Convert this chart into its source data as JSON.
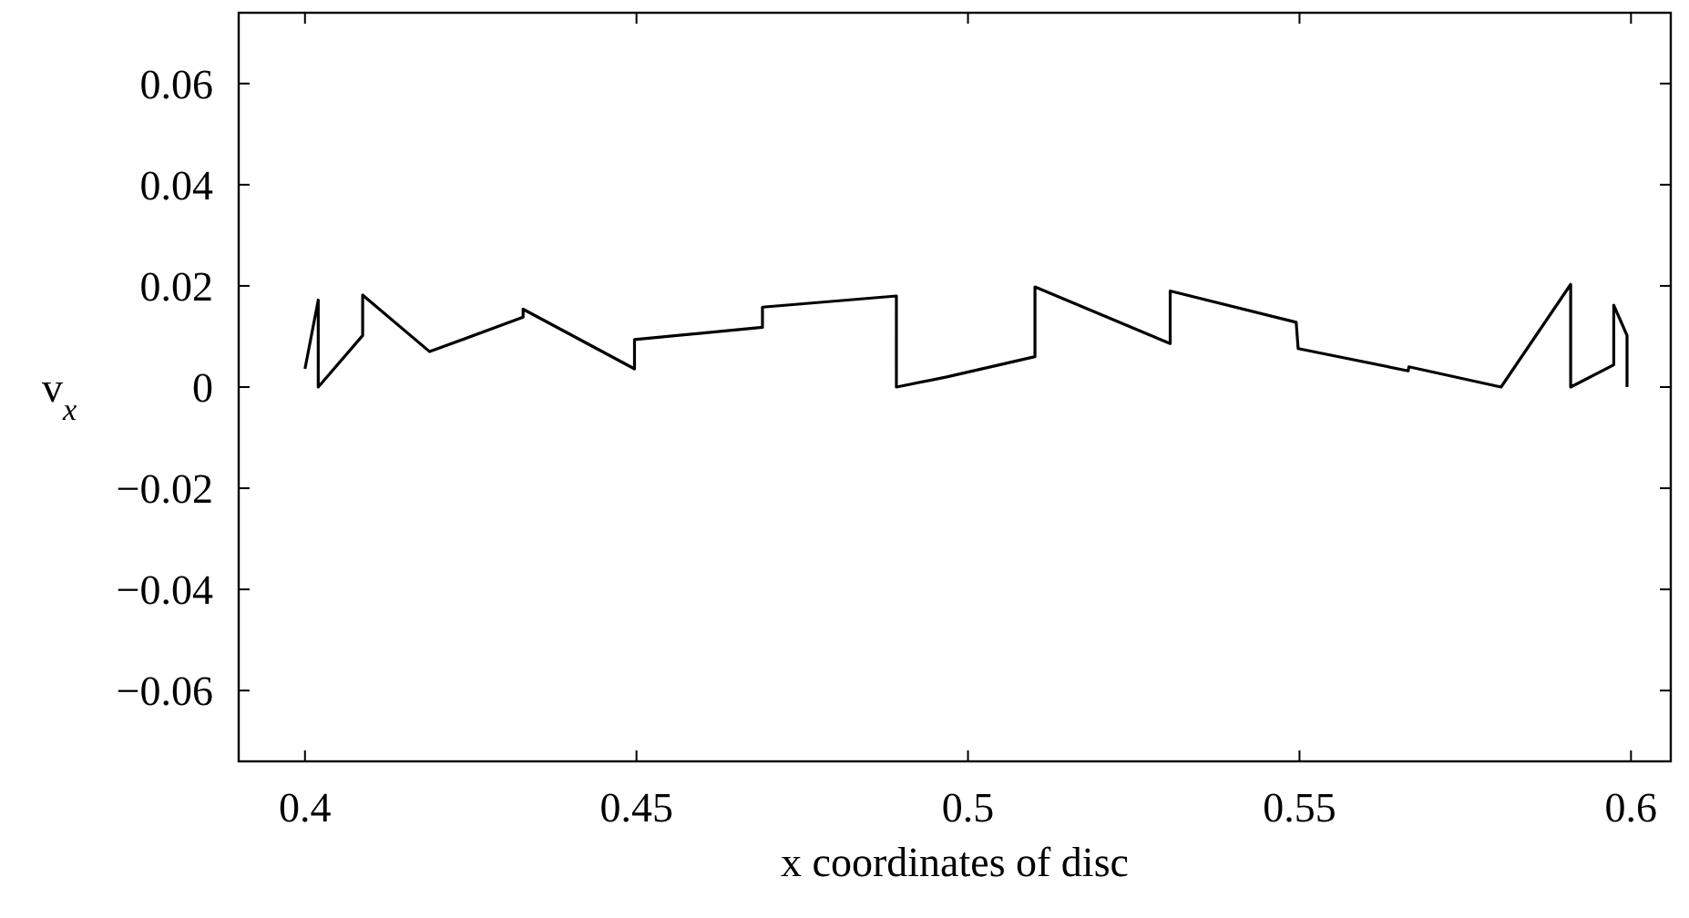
{
  "chart_data": {
    "type": "line",
    "xlabel": "x coordinates of disc",
    "ylabel": "v$_{x}$",
    "xlim": [
      0.39,
      0.606
    ],
    "ylim": [
      -0.074,
      0.074
    ],
    "xticks": [
      0.4,
      0.45,
      0.5,
      0.55,
      0.6
    ],
    "yticks": [
      -0.06,
      -0.04,
      -0.02,
      0,
      0.02,
      0.04,
      0.06
    ],
    "grid": false,
    "marker": "none",
    "line_style": "solid",
    "series": [
      {
        "color": "#000000",
        "x": [
          0.4,
          0.402,
          0.402,
          0.4087,
          0.4087,
          0.4188,
          0.4329,
          0.4329,
          0.4497,
          0.4497,
          0.469,
          0.469,
          0.4892,
          0.4892,
          0.4968,
          0.5101,
          0.5101,
          0.5305,
          0.5305,
          0.5495,
          0.5498,
          0.5664,
          0.5665,
          0.5804,
          0.5909,
          0.5909,
          0.5974,
          0.5974,
          0.5994,
          0.5994
        ],
        "values": [
          0.0036,
          0.0172,
          0,
          0.0102,
          0.0182,
          0.007,
          0.0138,
          0.0154,
          0.0036,
          0.0094,
          0.0118,
          0.0158,
          0.018,
          0,
          0.002,
          0.006,
          0.0198,
          0.0086,
          0.019,
          0.0128,
          0.0076,
          0.0032,
          0.004,
          0,
          0.0203,
          0,
          0.0044,
          0.0162,
          0.0102,
          0
        ]
      }
    ]
  }
}
